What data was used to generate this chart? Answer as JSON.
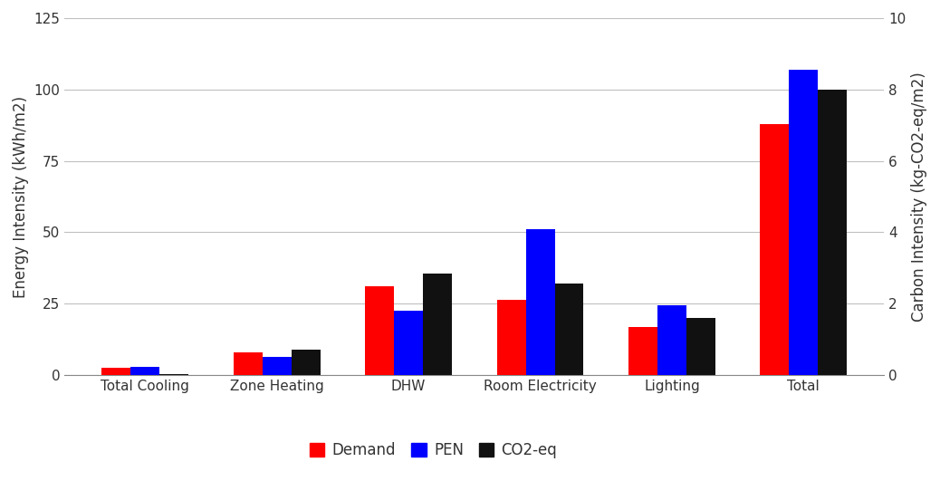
{
  "categories": [
    "Total Cooling",
    "Zone Heating",
    "DHW",
    "Room Electricity",
    "Lighting",
    "Total"
  ],
  "demand": [
    2.5,
    8.0,
    31.0,
    26.5,
    17.0,
    88.0
  ],
  "pen": [
    3.0,
    6.5,
    22.5,
    51.0,
    24.5,
    107.0
  ],
  "co2_eq_left": [
    0.5,
    9.0,
    35.5,
    32.0,
    20.0,
    100.0
  ],
  "bar_colors": {
    "demand": "#ff0000",
    "pen": "#0000ff",
    "co2_eq": "#111111"
  },
  "ylabel_left": "Energy Intensity (kWh/m2)",
  "ylabel_right": "Carbon Intensity (kg-CO2-eq/m2)",
  "ylim_left": [
    0,
    125
  ],
  "ylim_right": [
    0,
    10
  ],
  "yticks_left": [
    0,
    25,
    50,
    75,
    100,
    125
  ],
  "yticks_right": [
    0,
    2,
    4,
    6,
    8,
    10
  ],
  "legend_labels": [
    "Demand",
    "PEN",
    "CO2-eq"
  ],
  "background_color": "#ffffff",
  "grid_color": "#c0c0c0",
  "bar_width": 0.22,
  "figsize": [
    10.38,
    5.31
  ],
  "dpi": 100,
  "tick_fontsize": 11,
  "label_fontsize": 12,
  "legend_fontsize": 12
}
